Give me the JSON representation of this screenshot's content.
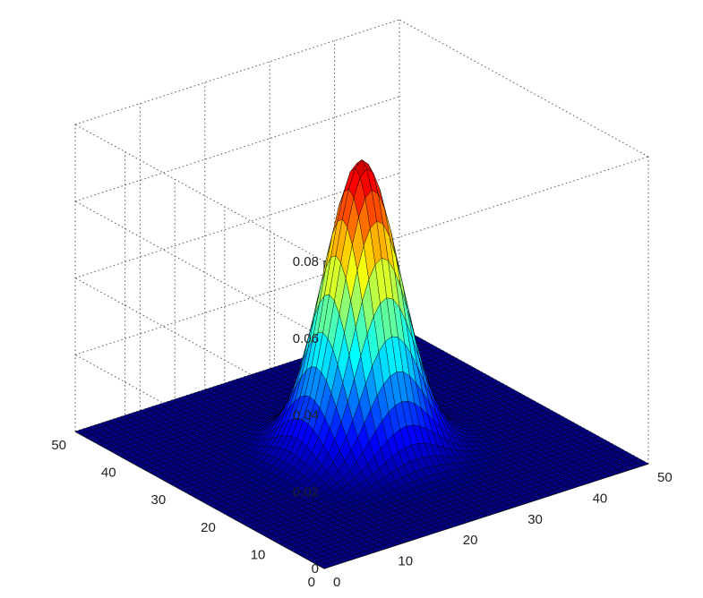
{
  "chart_data": {
    "type": "surface",
    "title": "",
    "xlabel": "",
    "ylabel": "",
    "zlabel": "",
    "xlim": [
      0,
      50
    ],
    "ylim": [
      0,
      50
    ],
    "zlim": [
      0,
      0.08
    ],
    "x_ticks": [
      "0",
      "10",
      "20",
      "30",
      "40",
      "50"
    ],
    "y_ticks": [
      "0",
      "10",
      "20",
      "30",
      "40",
      "50"
    ],
    "z_ticks": [
      "0",
      "0.02",
      "0.04",
      "0.06",
      "0.08"
    ],
    "grid": true,
    "box": true,
    "colormap": "jet",
    "surface": {
      "function": "gaussian",
      "grid_points": 50,
      "peak_x": 25,
      "peak_y": 25,
      "peak_z": 0.075,
      "sigma": 4.7
    },
    "colors": {
      "background": "#ffffff",
      "edge": "#000000",
      "floor": "#000080"
    }
  }
}
